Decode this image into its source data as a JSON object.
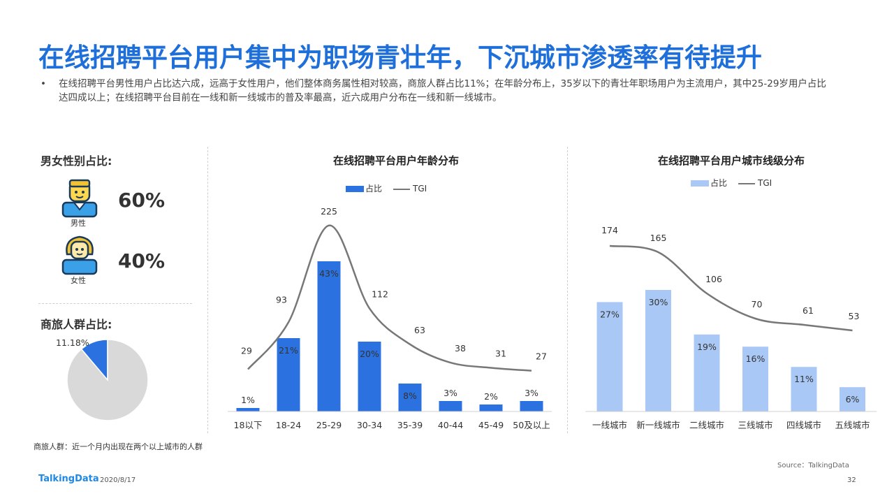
{
  "header": {
    "title": "在线招聘平台用户集中为职场青壮年，下沉城市渗透率有待提升",
    "bullet_symbol": "•",
    "bullet_text": "在线招聘平台男性用户占比达六成，远高于女性用户，他们整体商务属性相对较高，商旅人群占比11%；在年龄分布上，35岁以下的青壮年职场用户为主流用户，其中25-29岁用户占比达四成以上；在线招聘平台目前在一线和新一线城市的普及率最高，近六成用户分布在一线和新一线城市。"
  },
  "gender": {
    "label": "男女性别占比:",
    "male": {
      "caption": "男性",
      "percent": "60%"
    },
    "female": {
      "caption": "女性",
      "percent": "40%"
    }
  },
  "business": {
    "label": "商旅人群占比:",
    "slice_label": "11.18%",
    "footnote": "商旅人群：近一个月内出现在两个以上城市的人群"
  },
  "colors": {
    "accent": "#1e6fd9",
    "bar_age": "#2b72e0",
    "bar_city": "#a9c8f5",
    "tgi_line": "#777777",
    "pie_rest": "#d9d9d9"
  },
  "footer": {
    "logo": "TalkingData",
    "date": "2020/8/17",
    "source": "Source：TalkingData",
    "page": "32"
  },
  "chart_data": [
    {
      "type": "pie",
      "categories": [
        "商旅人群",
        "其他"
      ],
      "values": [
        11.18,
        88.82
      ],
      "labels": [
        "11.18%",
        ""
      ]
    },
    {
      "type": "bar",
      "title": "在线招聘平台用户年龄分布",
      "legend": [
        "占比",
        "TGI"
      ],
      "categories": [
        "18以下",
        "18-24",
        "25-29",
        "30-34",
        "35-39",
        "40-44",
        "45-49",
        "50及以上"
      ],
      "series": [
        {
          "name": "占比",
          "type": "bar",
          "values": [
            1,
            21,
            43,
            20,
            8,
            3,
            2,
            3
          ],
          "labels": [
            "1%",
            "21%",
            "43%",
            "20%",
            "8%",
            "3%",
            "2%",
            "3%"
          ]
        },
        {
          "name": "TGI",
          "type": "line",
          "values": [
            29,
            93,
            225,
            112,
            63,
            38,
            31,
            27
          ]
        }
      ]
    },
    {
      "type": "bar",
      "title": "在线招聘平台用户城市线级分布",
      "legend": [
        "占比",
        "TGI"
      ],
      "categories": [
        "一线城市",
        "新一线城市",
        "二线城市",
        "三线城市",
        "四线城市",
        "五线城市"
      ],
      "series": [
        {
          "name": "占比",
          "type": "bar",
          "values": [
            27,
            30,
            19,
            16,
            11,
            6
          ],
          "labels": [
            "27%",
            "30%",
            "19%",
            "16%",
            "11%",
            "6%"
          ]
        },
        {
          "name": "TGI",
          "type": "line",
          "values": [
            174,
            165,
            106,
            70,
            61,
            53
          ]
        }
      ]
    }
  ]
}
